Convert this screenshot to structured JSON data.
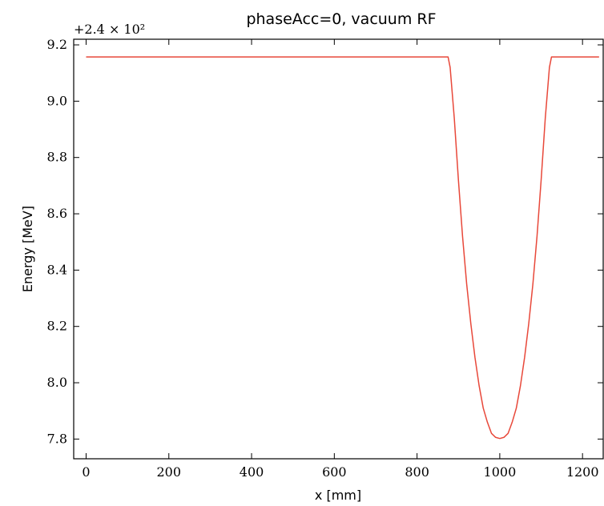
{
  "chart_data": {
    "type": "line",
    "title": "phaseAcc=0, vacuum RF",
    "xlabel": "x [mm]",
    "ylabel": "Energy [MeV]",
    "y_offset_label": "+2.4 × 10²",
    "y_offset": 240,
    "xlim": [
      -30,
      1250
    ],
    "ylim": [
      7.73,
      9.22
    ],
    "x_ticks": [
      0,
      200,
      400,
      600,
      800,
      1000,
      1200
    ],
    "x_tick_labels": [
      "0",
      "200",
      "400",
      "600",
      "800",
      "1000",
      "1200"
    ],
    "y_ticks": [
      7.8,
      8.0,
      8.2,
      8.4,
      8.6,
      8.8,
      9.0,
      9.2
    ],
    "y_tick_labels": [
      "7.8",
      "8.0",
      "8.2",
      "8.4",
      "8.6",
      "8.8",
      "9.0",
      "9.2"
    ],
    "grid": false,
    "legend": "none",
    "series": [
      {
        "color": "#e8483a",
        "x": [
          0,
          200,
          400,
          600,
          800,
          875,
          880,
          890,
          900,
          910,
          920,
          930,
          940,
          950,
          960,
          970,
          980,
          990,
          1000,
          1010,
          1020,
          1030,
          1040,
          1050,
          1060,
          1070,
          1080,
          1090,
          1100,
          1110,
          1120,
          1125,
          1200,
          1240
        ],
        "y": [
          9.157,
          9.157,
          9.157,
          9.157,
          9.157,
          9.157,
          9.12,
          8.94,
          8.72,
          8.52,
          8.35,
          8.21,
          8.09,
          7.99,
          7.91,
          7.86,
          7.82,
          7.806,
          7.802,
          7.806,
          7.82,
          7.86,
          7.91,
          7.99,
          8.09,
          8.21,
          8.35,
          8.52,
          8.72,
          8.94,
          9.12,
          9.157,
          9.157,
          9.157
        ]
      }
    ]
  }
}
